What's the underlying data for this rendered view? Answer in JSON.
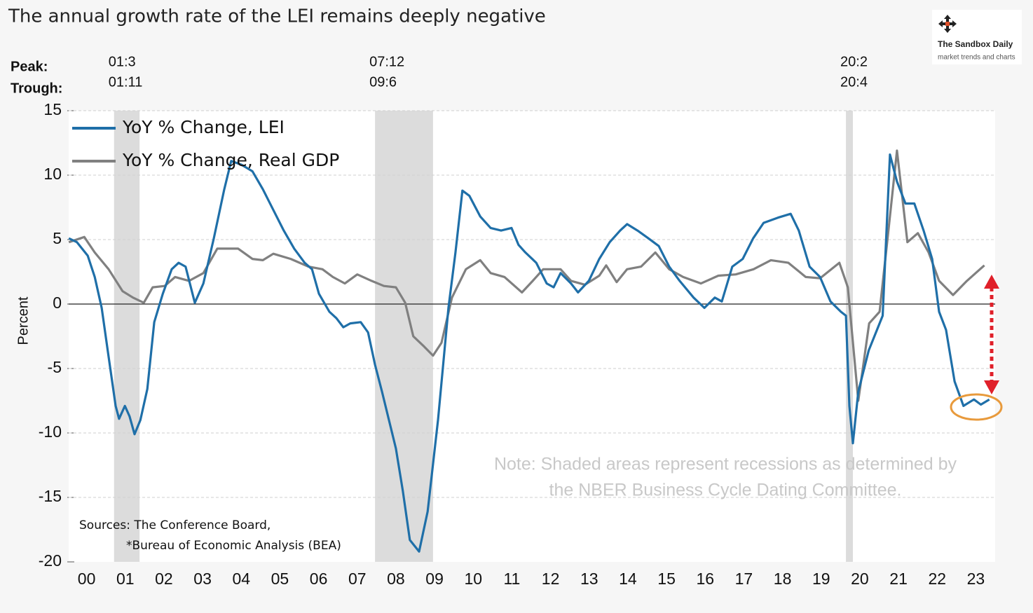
{
  "chart_data": {
    "type": "line",
    "title": "The annual growth rate of the LEI remains deeply negative",
    "peak_label": "Peak:",
    "trough_label": "Trough:",
    "logo": {
      "name": "The Sandbox Daily",
      "tagline": "market trends and charts"
    },
    "y_label": "Percent",
    "xlim": [
      2000,
      2024
    ],
    "ylim": [
      -20,
      15
    ],
    "yticks": [
      -20,
      -15,
      -10,
      -5,
      0,
      5,
      10,
      15
    ],
    "xticks": [
      {
        "value": 2000.5,
        "label": "00"
      },
      {
        "value": 2001.5,
        "label": "01"
      },
      {
        "value": 2002.5,
        "label": "02"
      },
      {
        "value": 2003.5,
        "label": "03"
      },
      {
        "value": 2004.5,
        "label": "04"
      },
      {
        "value": 2005.5,
        "label": "05"
      },
      {
        "value": 2006.5,
        "label": "06"
      },
      {
        "value": 2007.5,
        "label": "07"
      },
      {
        "value": 2008.5,
        "label": "08"
      },
      {
        "value": 2009.5,
        "label": "09"
      },
      {
        "value": 2010.5,
        "label": "10"
      },
      {
        "value": 2011.5,
        "label": "11"
      },
      {
        "value": 2012.5,
        "label": "12"
      },
      {
        "value": 2013.5,
        "label": "13"
      },
      {
        "value": 2014.5,
        "label": "14"
      },
      {
        "value": 2015.5,
        "label": "15"
      },
      {
        "value": 2016.5,
        "label": "16"
      },
      {
        "value": 2017.5,
        "label": "17"
      },
      {
        "value": 2018.5,
        "label": "18"
      },
      {
        "value": 2019.5,
        "label": "19"
      },
      {
        "value": 2020.5,
        "label": "20"
      },
      {
        "value": 2021.5,
        "label": "21"
      },
      {
        "value": 2022.5,
        "label": "22"
      },
      {
        "value": 2023.5,
        "label": "23"
      }
    ],
    "grid": true,
    "legend": "upper left",
    "recessions": [
      {
        "peak": "01:3",
        "trough": "01:11",
        "start": 2001.21,
        "end": 2001.87
      },
      {
        "peak": "07:12",
        "trough": "09:6",
        "start": 2007.96,
        "end": 2009.46
      },
      {
        "peak": "20:2",
        "trough": "20:4",
        "start": 2020.14,
        "end": 2020.32
      }
    ],
    "note": [
      "Note: Shaded areas represent recessions as determined by",
      "the NBER Business Cycle Dating Committee."
    ],
    "sources": [
      "Sources: The Conference Board,",
      "*Bureau of Economic Analysis (BEA)"
    ],
    "series": [
      {
        "name": "YoY % Change, LEI",
        "color": "#1f6fa8",
        "x": [
          2000.04,
          2000.25,
          2000.53,
          2000.71,
          2000.89,
          2001.07,
          2001.25,
          2001.34,
          2001.49,
          2001.61,
          2001.74,
          2001.89,
          2002.07,
          2002.25,
          2002.47,
          2002.7,
          2002.88,
          2003.06,
          2003.3,
          2003.52,
          2003.79,
          2004.06,
          2004.24,
          2004.51,
          2004.79,
          2005.06,
          2005.33,
          2005.6,
          2005.87,
          2006.14,
          2006.33,
          2006.51,
          2006.78,
          2006.96,
          2007.14,
          2007.32,
          2007.59,
          2007.78,
          2007.96,
          2008.14,
          2008.32,
          2008.5,
          2008.68,
          2008.86,
          2009.1,
          2009.32,
          2009.59,
          2009.86,
          2010.04,
          2010.22,
          2010.4,
          2010.68,
          2010.95,
          2011.22,
          2011.49,
          2011.67,
          2011.85,
          2012.13,
          2012.4,
          2012.58,
          2012.76,
          2013.03,
          2013.21,
          2013.49,
          2013.76,
          2014.03,
          2014.3,
          2014.48,
          2014.75,
          2015.03,
          2015.3,
          2015.57,
          2015.84,
          2016.2,
          2016.48,
          2016.75,
          2016.93,
          2017.2,
          2017.47,
          2017.74,
          2018.01,
          2018.38,
          2018.71,
          2018.92,
          2019.2,
          2019.47,
          2019.74,
          2020.01,
          2020.14,
          2020.23,
          2020.32,
          2020.46,
          2020.73,
          2021.09,
          2021.28,
          2021.46,
          2021.68,
          2021.91,
          2022.15,
          2022.37,
          2022.55,
          2022.73,
          2022.95,
          2023.18,
          2023.45,
          2023.63,
          2023.85
        ],
        "values": [
          5.1,
          4.8,
          3.75,
          2.1,
          -0.3,
          -4.1,
          -7.9,
          -8.9,
          -7.9,
          -8.7,
          -10.1,
          -9.0,
          -6.6,
          -1.4,
          0.8,
          2.7,
          3.2,
          2.9,
          0.1,
          1.6,
          5.1,
          8.9,
          11.1,
          10.8,
          10.3,
          8.9,
          7.3,
          5.7,
          4.3,
          3.2,
          2.7,
          0.8,
          -0.6,
          -1.1,
          -1.8,
          -1.5,
          -1.4,
          -2.2,
          -4.7,
          -6.8,
          -9.0,
          -11.2,
          -14.5,
          -18.3,
          -19.2,
          -16.1,
          -9.0,
          -0.3,
          4.0,
          8.8,
          8.4,
          6.8,
          5.9,
          5.7,
          5.9,
          4.6,
          4.0,
          3.2,
          1.6,
          1.3,
          2.4,
          1.6,
          0.9,
          1.8,
          3.5,
          4.8,
          5.7,
          6.2,
          5.7,
          5.1,
          4.5,
          2.9,
          1.8,
          0.5,
          -0.3,
          0.5,
          0.2,
          2.9,
          3.5,
          5.1,
          6.3,
          6.7,
          7.0,
          5.7,
          2.9,
          2.1,
          0.2,
          -0.6,
          -0.9,
          -7.9,
          -10.8,
          -6.8,
          -3.6,
          -0.9,
          11.6,
          9.5,
          7.8,
          7.8,
          5.7,
          3.5,
          -0.6,
          -2.0,
          -6.0,
          -7.9,
          -7.4,
          -7.8,
          -7.4
        ]
      },
      {
        "name": "YoY % Change, Real GDP",
        "color": "#808080",
        "x": [
          2000.04,
          2000.44,
          2000.71,
          2001.07,
          2001.43,
          2001.7,
          2001.98,
          2002.21,
          2002.52,
          2002.79,
          2003.15,
          2003.52,
          2003.88,
          2004.42,
          2004.79,
          2005.06,
          2005.33,
          2005.78,
          2006.24,
          2006.6,
          2006.87,
          2007.18,
          2007.5,
          2007.87,
          2008.19,
          2008.5,
          2008.74,
          2008.95,
          2009.23,
          2009.46,
          2009.68,
          2009.95,
          2010.31,
          2010.68,
          2010.95,
          2011.31,
          2011.76,
          2012.04,
          2012.31,
          2012.76,
          2013.03,
          2013.39,
          2013.76,
          2013.94,
          2014.21,
          2014.48,
          2014.84,
          2015.21,
          2015.57,
          2015.93,
          2016.39,
          2016.84,
          2017.29,
          2017.75,
          2018.2,
          2018.65,
          2019.1,
          2019.47,
          2019.97,
          2020.19,
          2020.46,
          2020.74,
          2021.01,
          2021.24,
          2021.46,
          2021.73,
          2022.0,
          2022.28,
          2022.55,
          2022.91,
          2023.27,
          2023.72
        ],
        "values": [
          4.8,
          5.2,
          4.0,
          2.7,
          1.0,
          0.5,
          0.1,
          1.3,
          1.4,
          2.1,
          1.8,
          2.4,
          4.3,
          4.3,
          3.5,
          3.4,
          3.9,
          3.5,
          2.9,
          2.7,
          2.1,
          1.6,
          2.3,
          1.8,
          1.4,
          1.3,
          0.1,
          -2.5,
          -3.3,
          -4.0,
          -3.0,
          0.5,
          2.7,
          3.4,
          2.4,
          2.1,
          0.9,
          1.8,
          2.7,
          2.7,
          1.8,
          1.5,
          2.2,
          3.0,
          1.7,
          2.7,
          2.9,
          4.0,
          2.7,
          2.1,
          1.6,
          2.2,
          2.3,
          2.7,
          3.4,
          3.2,
          2.1,
          2.0,
          3.2,
          1.3,
          -7.5,
          -1.5,
          -0.6,
          5.7,
          11.9,
          4.8,
          5.5,
          4.0,
          1.8,
          0.7,
          1.8,
          3.0
        ]
      }
    ]
  }
}
